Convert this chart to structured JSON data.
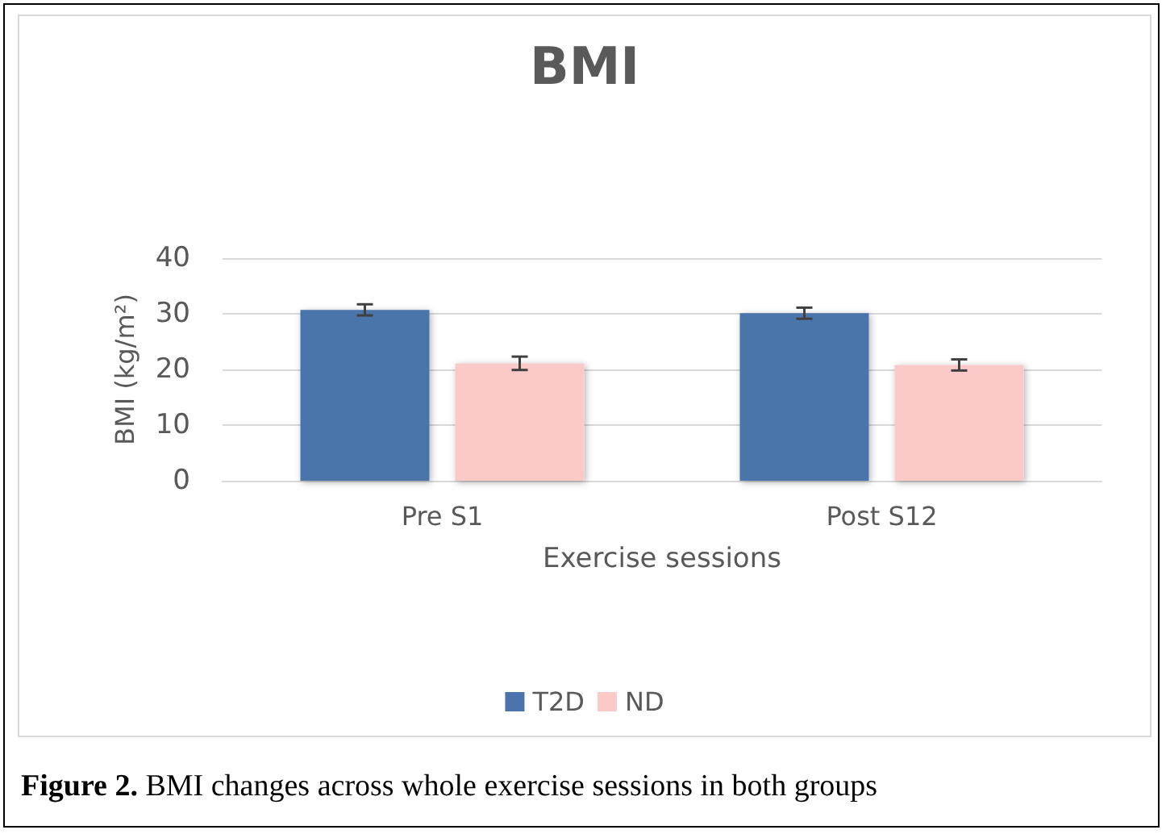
{
  "chart_data": {
    "type": "bar",
    "title": "BMI",
    "xlabel": "Exercise sessions",
    "ylabel": "BMI (kg/m²)",
    "categories": [
      "Pre S1",
      "Post S12"
    ],
    "series": [
      {
        "name": "T2D",
        "color": "#4a74ab",
        "values": [
          30.7,
          30.1
        ],
        "errors": [
          1.0,
          1.0
        ]
      },
      {
        "name": "ND",
        "color": "#fcc9c9",
        "values": [
          21.1,
          20.8
        ],
        "errors": [
          1.2,
          1.0
        ]
      }
    ],
    "ylim": [
      0,
      40
    ],
    "yticks": [
      0,
      10,
      20,
      30,
      40
    ],
    "grid": "y",
    "legend": "bottom",
    "annotations": [
      "Figure 2. BMI changes across whole exercise sessions in both groups"
    ]
  }
}
